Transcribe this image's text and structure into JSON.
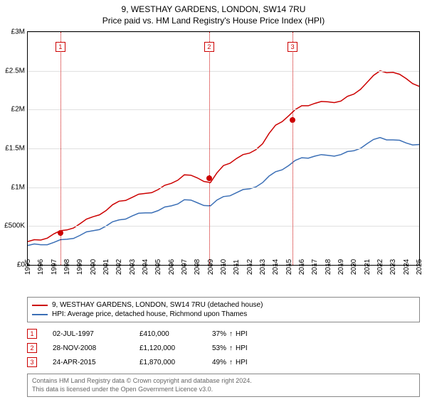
{
  "title": {
    "address": "9, WESTHAY GARDENS, LONDON, SW14 7RU",
    "subtitle": "Price paid vs. HM Land Registry's House Price Index (HPI)"
  },
  "chart": {
    "type": "line",
    "background_color": "#ffffff",
    "grid_color": "#e0e0e0",
    "axis_color": "#000000",
    "label_fontsize": 10,
    "x": {
      "min": 1995,
      "max": 2025,
      "tick_step": 1
    },
    "y": {
      "min": 0,
      "max": 3000000,
      "tick_step": 500000,
      "tick_labels": [
        "£0",
        "£500K",
        "£1M",
        "£1.5M",
        "£2M",
        "£2.5M",
        "£3M"
      ]
    },
    "series": [
      {
        "name": "9, WESTHAY GARDENS, LONDON, SW14 7RU (detached house)",
        "color": "#cc0000",
        "line_width": 1.5,
        "points": [
          [
            1995,
            300000
          ],
          [
            1996,
            320000
          ],
          [
            1997,
            400000
          ],
          [
            1998,
            450000
          ],
          [
            1999,
            530000
          ],
          [
            2000,
            620000
          ],
          [
            2001,
            700000
          ],
          [
            2002,
            820000
          ],
          [
            2003,
            870000
          ],
          [
            2004,
            920000
          ],
          [
            2005,
            970000
          ],
          [
            2006,
            1050000
          ],
          [
            2007,
            1160000
          ],
          [
            2008,
            1120000
          ],
          [
            2009,
            1060000
          ],
          [
            2010,
            1280000
          ],
          [
            2011,
            1370000
          ],
          [
            2012,
            1440000
          ],
          [
            2013,
            1560000
          ],
          [
            2014,
            1800000
          ],
          [
            2015,
            1920000
          ],
          [
            2016,
            2050000
          ],
          [
            2017,
            2080000
          ],
          [
            2018,
            2100000
          ],
          [
            2019,
            2110000
          ],
          [
            2020,
            2200000
          ],
          [
            2021,
            2350000
          ],
          [
            2022,
            2500000
          ],
          [
            2023,
            2480000
          ],
          [
            2024,
            2400000
          ],
          [
            2025,
            2300000
          ]
        ]
      },
      {
        "name": "HPI: Average price, detached house, Richmond upon Thames",
        "color": "#3b6fb6",
        "line_width": 1.5,
        "points": [
          [
            1995,
            250000
          ],
          [
            1996,
            260000
          ],
          [
            1997,
            290000
          ],
          [
            1998,
            330000
          ],
          [
            1999,
            380000
          ],
          [
            2000,
            440000
          ],
          [
            2001,
            500000
          ],
          [
            2002,
            580000
          ],
          [
            2003,
            630000
          ],
          [
            2004,
            670000
          ],
          [
            2005,
            700000
          ],
          [
            2006,
            760000
          ],
          [
            2007,
            840000
          ],
          [
            2008,
            800000
          ],
          [
            2009,
            760000
          ],
          [
            2010,
            880000
          ],
          [
            2011,
            930000
          ],
          [
            2012,
            980000
          ],
          [
            2013,
            1060000
          ],
          [
            2014,
            1200000
          ],
          [
            2015,
            1280000
          ],
          [
            2016,
            1380000
          ],
          [
            2017,
            1400000
          ],
          [
            2018,
            1410000
          ],
          [
            2019,
            1420000
          ],
          [
            2020,
            1470000
          ],
          [
            2021,
            1560000
          ],
          [
            2022,
            1640000
          ],
          [
            2023,
            1610000
          ],
          [
            2024,
            1570000
          ],
          [
            2025,
            1550000
          ]
        ]
      }
    ],
    "event_lines": {
      "color": "#cc0000",
      "style": "dotted",
      "marker_box": {
        "size": 14,
        "border_color": "#cc0000",
        "text_color": "#cc0000",
        "fontsize": 9
      },
      "dot": {
        "radius": 4,
        "color": "#cc0000"
      },
      "events": [
        {
          "label": "1",
          "x": 1997.5,
          "y": 410000
        },
        {
          "label": "2",
          "x": 2008.9,
          "y": 1120000
        },
        {
          "label": "3",
          "x": 2015.3,
          "y": 1870000
        }
      ]
    }
  },
  "legend": {
    "border_color": "#888888",
    "fontsize": 10,
    "items": [
      {
        "color": "#cc0000",
        "label": "9, WESTHAY GARDENS, LONDON, SW14 7RU (detached house)"
      },
      {
        "color": "#3b6fb6",
        "label": "HPI: Average price, detached house, Richmond upon Thames"
      }
    ]
  },
  "sales": {
    "fontsize": 10,
    "hpi_suffix": "HPI",
    "rows": [
      {
        "marker": "1",
        "date": "02-JUL-1997",
        "price": "£410,000",
        "pct": "37%"
      },
      {
        "marker": "2",
        "date": "28-NOV-2008",
        "price": "£1,120,000",
        "pct": "53%"
      },
      {
        "marker": "3",
        "date": "24-APR-2015",
        "price": "£1,870,000",
        "pct": "49%"
      }
    ]
  },
  "attribution": {
    "border_color": "#888888",
    "text_color": "#666666",
    "fontsize": 9,
    "line1": "Contains HM Land Registry data © Crown copyright and database right 2024.",
    "line2": "This data is licensed under the Open Government Licence v3.0."
  }
}
